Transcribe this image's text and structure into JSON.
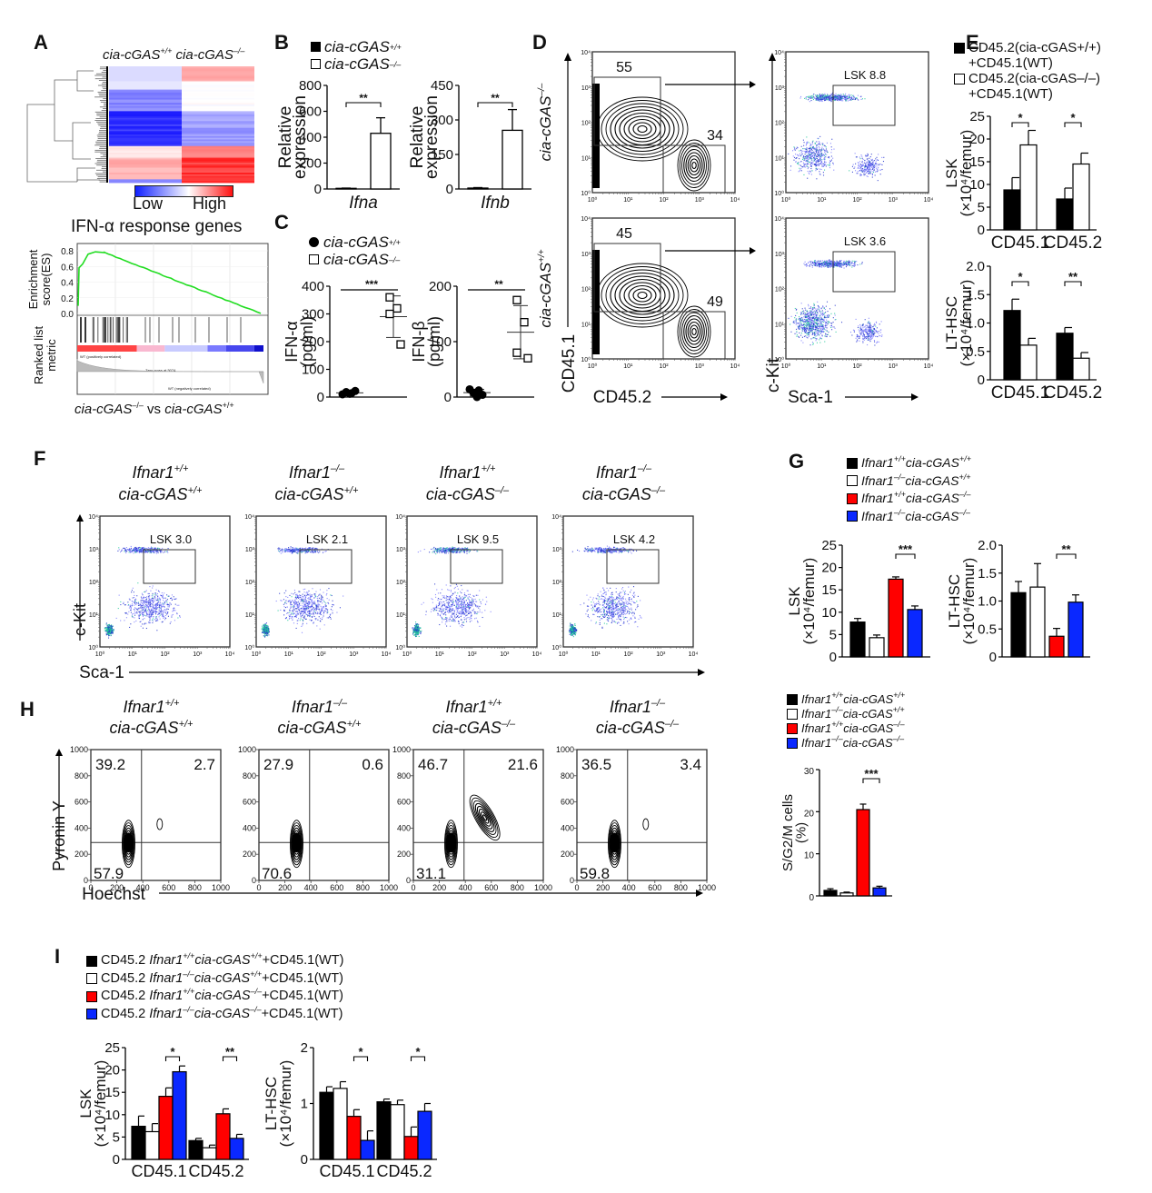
{
  "panels": {
    "A": {
      "letter": "A"
    },
    "B": {
      "letter": "B"
    },
    "C": {
      "letter": "C"
    },
    "D": {
      "letter": "D"
    },
    "E": {
      "letter": "E"
    },
    "F": {
      "letter": "F"
    },
    "G": {
      "letter": "G"
    },
    "H": {
      "letter": "H"
    },
    "I": {
      "letter": "I"
    }
  },
  "genotypes": {
    "wt": "cia-cGAS",
    "wt_sup": "+/+",
    "ko": "cia-cGAS",
    "ko_sup": "–/–",
    "ifnar_wt": "Ifnar1",
    "ifnar_wt_sup": "+/+",
    "ifnar_ko": "Ifnar1",
    "ifnar_ko_sup": "–/–"
  },
  "colors": {
    "black": "#000000",
    "white": "#ffffff",
    "red": "#ff0000",
    "blue": "#0a28ff"
  },
  "heatmap": {
    "col_labels": [
      "cia-cGAS+/+",
      "cia-cGAS–/–"
    ],
    "scale_low": "Low",
    "scale_high": "High"
  },
  "gsea": {
    "title": "IFN-α response genes",
    "ylabel_es": "Enrichment score(ES)",
    "ylabel_rank": "Ranked list metric",
    "yticks": [
      "0.8",
      "0.6",
      "0.4",
      "0.2",
      "0.0"
    ],
    "xlabel_a": "cia-cGAS",
    "xlabel_a_sup": "–/–",
    "xlabel_vs": " vs ",
    "xlabel_b": "cia-cGAS",
    "xlabel_b_sup": "+/+"
  },
  "legend_B": [
    "cia-cGAS+/+",
    "cia-cGAS–/–"
  ],
  "legend_C": [
    "cia-cGAS+/+",
    "cia-cGAS–/–"
  ],
  "legend_E": [
    {
      "line1": "CD45.2(cia-cGAS+/+)",
      "line2": "+CD45.1(WT)"
    },
    {
      "line1": "CD45.2(cia-cGAS–/–)",
      "line2": "+CD45.1(WT)"
    }
  ],
  "legend_G": [
    "Ifnar1+/+cia-cGAS+/+",
    "Ifnar1–/–cia-cGAS+/+",
    "Ifnar1+/+cia-cGAS–/–",
    "Ifnar1–/–cia-cGAS–/–"
  ],
  "legend_I": [
    "CD45.2 Ifnar1+/+cia-cGAS+/++CD45.1(WT)",
    "CD45.2 Ifnar1–/–cia-cGAS+/++CD45.1(WT)",
    "CD45.2 Ifnar1+/+cia-cGAS–/–+CD45.1(WT)",
    "CD45.2 Ifnar1–/–cia-cGAS–/–+CD45.1(WT)"
  ],
  "flow_D": {
    "row_labels": [
      "cia-cGAS–/–",
      "cia-cGAS+/+"
    ],
    "left_xlabel": "CD45.2",
    "left_ylabel": "CD45.1",
    "right_xlabel": "Sca-1",
    "right_ylabel": "c-Kit",
    "log_ticks": [
      "10⁰",
      "10¹",
      "10²",
      "10³",
      "10⁴"
    ],
    "gates_left": [
      {
        "cd451": "55",
        "cd452": "34"
      },
      {
        "cd451": "45",
        "cd452": "49"
      }
    ],
    "gates_right": [
      "LSK 8.8",
      "LSK 3.6"
    ]
  },
  "flow_F": {
    "xlabel": "Sca-1",
    "ylabel": "c-Kit",
    "log_ticks": [
      "10⁰",
      "10¹",
      "10²",
      "10³",
      "10⁴"
    ],
    "plots": [
      {
        "title1": "Ifnar1+/+",
        "title2": "cia-cGAS+/+",
        "gate": "LSK 3.0"
      },
      {
        "title1": "Ifnar1–/–",
        "title2": "cia-cGAS+/+",
        "gate": "LSK 2.1"
      },
      {
        "title1": "Ifnar1+/+",
        "title2": "cia-cGAS–/–",
        "gate": "LSK 9.5"
      },
      {
        "title1": "Ifnar1–/–",
        "title2": "cia-cGAS–/–",
        "gate": "LSK 4.2"
      }
    ]
  },
  "flow_H": {
    "xlabel": "Hoechst",
    "ylabel": "Pyronin Y",
    "ticks": [
      "0",
      "200",
      "400",
      "600",
      "800",
      "1000"
    ],
    "plots": [
      {
        "title1": "Ifnar1+/+",
        "title2": "cia-cGAS+/+",
        "ul": "39.2",
        "ur": "2.7",
        "ll": "57.9"
      },
      {
        "title1": "Ifnar1–/–",
        "title2": "cia-cGAS+/+",
        "ul": "27.9",
        "ur": "0.6",
        "ll": "70.6"
      },
      {
        "title1": "Ifnar1+/+",
        "title2": "cia-cGAS–/–",
        "ul": "46.7",
        "ur": "21.6",
        "ll": "31.1"
      },
      {
        "title1": "Ifnar1–/–",
        "title2": "cia-cGAS–/–",
        "ul": "36.5",
        "ur": "3.4",
        "ll": "59.8"
      }
    ]
  },
  "chart_data": [
    {
      "id": "B1",
      "type": "bar",
      "title": "",
      "xlabel": "Ifna",
      "ylabel": "Relative expression",
      "ylim": [
        0,
        800
      ],
      "yticks": [
        0,
        200,
        400,
        600,
        800
      ],
      "categories": [
        "Ifna"
      ],
      "series": [
        {
          "name": "cia-cGAS+/+",
          "color": "#000000",
          "values": [
            5
          ],
          "err": [
            2
          ]
        },
        {
          "name": "cia-cGAS–/–",
          "color": "#ffffff",
          "values": [
            430
          ],
          "err": [
            120
          ]
        }
      ],
      "sig": [
        {
          "label": "**",
          "a": 0,
          "b": 1
        }
      ]
    },
    {
      "id": "B2",
      "type": "bar",
      "title": "",
      "xlabel": "Ifnb",
      "ylabel": "Relative expression",
      "ylim": [
        0,
        450
      ],
      "yticks": [
        0,
        150,
        300,
        450
      ],
      "categories": [
        "Ifnb"
      ],
      "series": [
        {
          "name": "cia-cGAS+/+",
          "color": "#000000",
          "values": [
            4
          ],
          "err": [
            2
          ]
        },
        {
          "name": "cia-cGAS–/–",
          "color": "#ffffff",
          "values": [
            255
          ],
          "err": [
            90
          ]
        }
      ],
      "sig": [
        {
          "label": "**",
          "a": 0,
          "b": 1
        }
      ]
    },
    {
      "id": "C1",
      "type": "scatter",
      "ylabel": "IFN-α (pg/ml)",
      "ylim": [
        0,
        400
      ],
      "yticks": [
        0,
        100,
        200,
        300,
        400
      ],
      "groups": [
        {
          "name": "cia-cGAS+/+",
          "marker": "circle",
          "points": [
            10,
            14,
            18,
            22,
            12
          ],
          "mean": 15,
          "sd": 5
        },
        {
          "name": "cia-cGAS–/–",
          "marker": "square",
          "points": [
            360,
            320,
            300,
            190
          ],
          "mean": 290,
          "sd": 75
        }
      ],
      "sig": "***"
    },
    {
      "id": "C2",
      "type": "scatter",
      "ylabel": "IFN-β (pg/ml)",
      "ylim": [
        0,
        200
      ],
      "yticks": [
        0,
        100,
        200
      ],
      "groups": [
        {
          "name": "cia-cGAS+/+",
          "marker": "circle",
          "points": [
            14,
            12,
            8,
            4,
            0
          ],
          "mean": 8,
          "sd": 6
        },
        {
          "name": "cia-cGAS–/–",
          "marker": "square",
          "points": [
            175,
            135,
            80,
            70
          ],
          "mean": 117,
          "sd": 48
        }
      ],
      "sig": "**"
    },
    {
      "id": "E1",
      "type": "bar",
      "ylabel": "LSK (×10⁴/femur)",
      "ylim": [
        0,
        25
      ],
      "yticks": [
        0,
        5,
        10,
        15,
        20,
        25
      ],
      "categories": [
        "CD45.1",
        "CD45.2"
      ],
      "series": [
        {
          "name": "CD45.2(cia-cGAS+/+)+CD45.1(WT)",
          "color": "#000000",
          "values": [
            8.8,
            6.8
          ],
          "err": [
            2.7,
            2.4
          ]
        },
        {
          "name": "CD45.2(cia-cGAS–/–)+CD45.1(WT)",
          "color": "#ffffff",
          "values": [
            18.7,
            14.5
          ],
          "err": [
            3.2,
            2.4
          ]
        }
      ],
      "sig": [
        {
          "cat": 0,
          "label": "*"
        },
        {
          "cat": 1,
          "label": "*"
        }
      ]
    },
    {
      "id": "E2",
      "type": "bar",
      "ylabel": "LT-HSC (×10⁴/femur)",
      "ylim": [
        0,
        2.0
      ],
      "yticks": [
        0,
        0.5,
        1.0,
        1.5,
        2.0
      ],
      "categories": [
        "CD45.1",
        "CD45.2"
      ],
      "series": [
        {
          "name": "CD45.2(cia-cGAS+/+)+CD45.1(WT)",
          "color": "#000000",
          "values": [
            1.22,
            0.82
          ],
          "err": [
            0.2,
            0.1
          ]
        },
        {
          "name": "CD45.2(cia-cGAS–/–)+CD45.1(WT)",
          "color": "#ffffff",
          "values": [
            0.61,
            0.38
          ],
          "err": [
            0.12,
            0.1
          ]
        }
      ],
      "sig": [
        {
          "cat": 0,
          "label": "*"
        },
        {
          "cat": 1,
          "label": "**"
        }
      ]
    },
    {
      "id": "G1",
      "type": "bar",
      "ylabel": "LSK (×10⁴/femur)",
      "ylim": [
        0,
        25
      ],
      "yticks": [
        0,
        5,
        10,
        15,
        20,
        25
      ],
      "categories": [
        "Ifnar1+/+cia-cGAS+/+",
        "Ifnar1–/–cia-cGAS+/+",
        "Ifnar1+/+cia-cGAS–/–",
        "Ifnar1–/–cia-cGAS–/–"
      ],
      "values": [
        7.8,
        4.3,
        17.4,
        10.6
      ],
      "err": [
        0.8,
        0.6,
        0.5,
        0.8
      ],
      "colors": [
        "#000000",
        "#ffffff",
        "#ff0000",
        "#0a28ff"
      ],
      "sig": [
        {
          "a": 2,
          "b": 3,
          "label": "***"
        }
      ]
    },
    {
      "id": "G2",
      "type": "bar",
      "ylabel": "LT-HSC (×10⁴/femur)",
      "ylim": [
        0,
        2.0
      ],
      "yticks": [
        0,
        0.5,
        1.0,
        1.5,
        2.0
      ],
      "categories": [
        "Ifnar1+/+cia-cGAS+/+",
        "Ifnar1–/–cia-cGAS+/+",
        "Ifnar1+/+cia-cGAS–/–",
        "Ifnar1–/–cia-cGAS–/–"
      ],
      "values": [
        1.15,
        1.25,
        0.37,
        0.98
      ],
      "err": [
        0.2,
        0.42,
        0.14,
        0.13
      ],
      "colors": [
        "#000000",
        "#ffffff",
        "#ff0000",
        "#0a28ff"
      ],
      "sig": [
        {
          "a": 2,
          "b": 3,
          "label": "**"
        }
      ]
    },
    {
      "id": "H",
      "type": "bar",
      "ylabel": "S/G2/M cells (%)",
      "ylim": [
        0,
        30
      ],
      "yticks": [
        0,
        10,
        20,
        30
      ],
      "categories": [
        "Ifnar1+/+cia-cGAS+/+",
        "Ifnar1–/–cia-cGAS+/+",
        "Ifnar1+/+cia-cGAS–/–",
        "Ifnar1–/–cia-cGAS–/–"
      ],
      "values": [
        1.3,
        0.7,
        20.5,
        1.9
      ],
      "err": [
        0.4,
        0.2,
        1.3,
        0.4
      ],
      "colors": [
        "#000000",
        "#ffffff",
        "#ff0000",
        "#0a28ff"
      ],
      "sig": [
        {
          "a": 2,
          "b": 3,
          "label": "***"
        }
      ]
    },
    {
      "id": "I1",
      "type": "bar",
      "ylabel": "LSK (×10⁴/femur)",
      "ylim": [
        0,
        25
      ],
      "yticks": [
        0,
        5,
        10,
        15,
        20,
        25
      ],
      "categories": [
        "CD45.1",
        "CD45.2"
      ],
      "series": [
        {
          "name": "CD45.2 Ifnar1+/+cia-cGAS+/++CD45.1(WT)",
          "color": "#000000",
          "values": [
            7.4,
            4.2
          ],
          "err": [
            2.3,
            0.5
          ]
        },
        {
          "name": "CD45.2 Ifnar1–/–cia-cGAS+/++CD45.1(WT)",
          "color": "#ffffff",
          "values": [
            6.2,
            2.6
          ],
          "err": [
            1.8,
            0.6
          ]
        },
        {
          "name": "CD45.2 Ifnar1+/+cia-cGAS–/–+CD45.1(WT)",
          "color": "#ff0000",
          "values": [
            14.1,
            10.2
          ],
          "err": [
            1.9,
            1.1
          ]
        },
        {
          "name": "CD45.2 Ifnar1–/–cia-cGAS–/–+CD45.1(WT)",
          "color": "#0a28ff",
          "values": [
            19.6,
            4.7
          ],
          "err": [
            1.3,
            0.9
          ]
        }
      ],
      "sig": [
        {
          "cat": 0,
          "label": "*"
        },
        {
          "cat": 1,
          "label": "**"
        }
      ]
    },
    {
      "id": "I2",
      "type": "bar",
      "ylabel": "LT-HSC (×10⁴/femur)",
      "ylim": [
        0,
        2
      ],
      "yticks": [
        0,
        1,
        2
      ],
      "categories": [
        "CD45.1",
        "CD45.2"
      ],
      "series": [
        {
          "name": "CD45.2 Ifnar1+/+cia-cGAS+/++CD45.1(WT)",
          "color": "#000000",
          "values": [
            1.2,
            1.03
          ],
          "err": [
            0.1,
            0.05
          ]
        },
        {
          "name": "CD45.2 Ifnar1–/–cia-cGAS+/++CD45.1(WT)",
          "color": "#ffffff",
          "values": [
            1.27,
            0.98
          ],
          "err": [
            0.12,
            0.08
          ]
        },
        {
          "name": "CD45.2 Ifnar1+/+cia-cGAS–/–+CD45.1(WT)",
          "color": "#ff0000",
          "values": [
            0.77,
            0.41
          ],
          "err": [
            0.12,
            0.17
          ]
        },
        {
          "name": "CD45.2 Ifnar1–/–cia-cGAS–/–+CD45.1(WT)",
          "color": "#0a28ff",
          "values": [
            0.34,
            0.86
          ],
          "err": [
            0.17,
            0.14
          ]
        }
      ],
      "sig": [
        {
          "cat": 0,
          "label": "*"
        },
        {
          "cat": 1,
          "label": "*"
        }
      ]
    }
  ]
}
